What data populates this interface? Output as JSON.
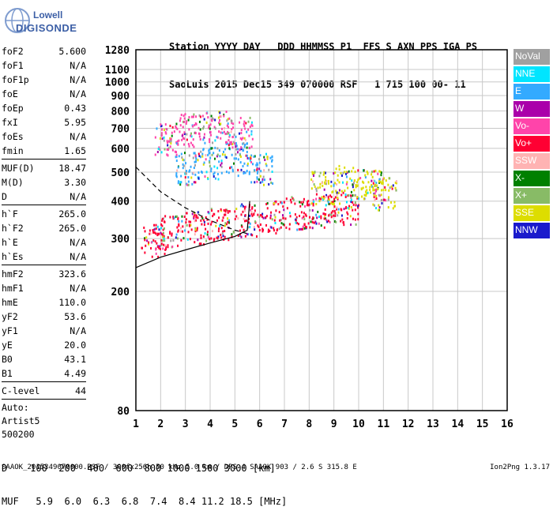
{
  "logo": {
    "brand": "Lowell",
    "name": "DIGISONDE"
  },
  "header": {
    "line1": "Station YYYY DAY   DDD HHMMSS P1  FFS S AXN PPS IGA PS",
    "line2": "SaoLuis 2015 Dec15 349 070000 RSF   1 715 100 00- 11"
  },
  "params": [
    {
      "label": "foF2",
      "value": "5.600"
    },
    {
      "label": "foF1",
      "value": "N/A"
    },
    {
      "label": "foF1p",
      "value": "N/A"
    },
    {
      "label": "foE",
      "value": "N/A"
    },
    {
      "label": "foEp",
      "value": "0.43"
    },
    {
      "label": "fxI",
      "value": "5.95"
    },
    {
      "label": "foEs",
      "value": "N/A"
    },
    {
      "label": "fmin",
      "value": "1.65"
    },
    {
      "sep": true
    },
    {
      "label": "MUF(D)",
      "value": "18.47"
    },
    {
      "label": "M(D)",
      "value": "3.30"
    },
    {
      "label": "D",
      "value": "N/A"
    },
    {
      "sep": true
    },
    {
      "label": "h`F",
      "value": "265.0"
    },
    {
      "label": "h`F2",
      "value": "265.0"
    },
    {
      "label": "h`E",
      "value": "N/A"
    },
    {
      "label": "h`Es",
      "value": "N/A"
    },
    {
      "sep": true
    },
    {
      "label": "hmF2",
      "value": "323.6"
    },
    {
      "label": "hmF1",
      "value": "N/A"
    },
    {
      "label": "hmE",
      "value": "110.0"
    },
    {
      "label": "yF2",
      "value": "53.6"
    },
    {
      "label": "yF1",
      "value": "N/A"
    },
    {
      "label": "yE",
      "value": "20.0"
    },
    {
      "label": "B0",
      "value": "43.1"
    },
    {
      "label": "B1",
      "value": "4.49"
    },
    {
      "sep": true
    },
    {
      "label": "C-level",
      "value": "44"
    },
    {
      "sep": true
    },
    {
      "note": "Auto:"
    },
    {
      "note": "Artist5"
    },
    {
      "note": "500200"
    }
  ],
  "legend": [
    {
      "label": "NoVal",
      "color": "#a0a0a0"
    },
    {
      "label": "NNE",
      "color": "#00e5ff"
    },
    {
      "label": "E",
      "color": "#33aaff"
    },
    {
      "label": "W",
      "color": "#aa00aa"
    },
    {
      "label": "Vo-",
      "color": "#ff44aa"
    },
    {
      "label": "Vo+",
      "color": "#ff0033"
    },
    {
      "label": "SSW",
      "color": "#ffb3b3"
    },
    {
      "label": "X-",
      "color": "#008000"
    },
    {
      "label": "X+",
      "color": "#88bb66"
    },
    {
      "label": "SSE",
      "color": "#dddd00"
    },
    {
      "label": "NNW",
      "color": "#1a1acc"
    }
  ],
  "footer": {
    "d_row": "D    100  200  400  600  800 1000 1500 3000 [km]",
    "muf_row": "MUF   5.9  6.0  6.3  6.8  7.4  8.4 11.2 18.5 [MHz]",
    "info": "SAAOK_2015349070000.RSF / 300fx256h 50 kHz 5.0 km / DPS-4 SAAOK 903 / 2.6 S 315.8 E",
    "version": "Ion2Png 1.3.17"
  },
  "chart_data": {
    "type": "scatter",
    "title": "",
    "xlabel": "",
    "ylabel": "",
    "xlim": [
      1,
      16
    ],
    "ylim": [
      80,
      1280
    ],
    "y_scale": "log",
    "x_ticks": [
      1,
      2,
      3,
      4,
      5,
      6,
      7,
      8,
      9,
      10,
      11,
      12,
      13,
      14,
      15,
      16
    ],
    "y_ticks": [
      80,
      200,
      300,
      400,
      500,
      600,
      700,
      800,
      900,
      1000,
      1100,
      1280
    ],
    "grid": true,
    "series": [
      {
        "name": "Vo+",
        "color": "#ff0033",
        "x": [
          1.7,
          2.5,
          3.5,
          4.5,
          5.5,
          6.5,
          7.5,
          8.5,
          9.5
        ],
        "y": [
          300,
          320,
          330,
          340,
          350,
          360,
          370,
          375,
          380
        ]
      },
      {
        "name": "E",
        "color": "#33aaff",
        "x": [
          3.0,
          4.0,
          5.0,
          6.0
        ],
        "y": [
          520,
          540,
          560,
          520
        ]
      },
      {
        "name": "SSE",
        "color": "#dddd00",
        "x": [
          8.5,
          9.5,
          10.5,
          11.0
        ],
        "y": [
          450,
          470,
          460,
          430
        ]
      },
      {
        "name": "Vo-",
        "color": "#ff44aa",
        "x": [
          2.2,
          3.2,
          4.2,
          5.2
        ],
        "y": [
          650,
          700,
          720,
          680
        ]
      }
    ],
    "profile_curves": [
      {
        "style": "solid",
        "x": [
          1,
          2,
          3,
          4,
          5,
          5.5,
          5.6
        ],
        "y": [
          240,
          260,
          275,
          290,
          305,
          320,
          400
        ]
      },
      {
        "style": "dashed",
        "x": [
          1,
          2,
          3,
          4,
          5,
          5.6
        ],
        "y": [
          520,
          430,
          380,
          345,
          320,
          310
        ]
      }
    ]
  }
}
